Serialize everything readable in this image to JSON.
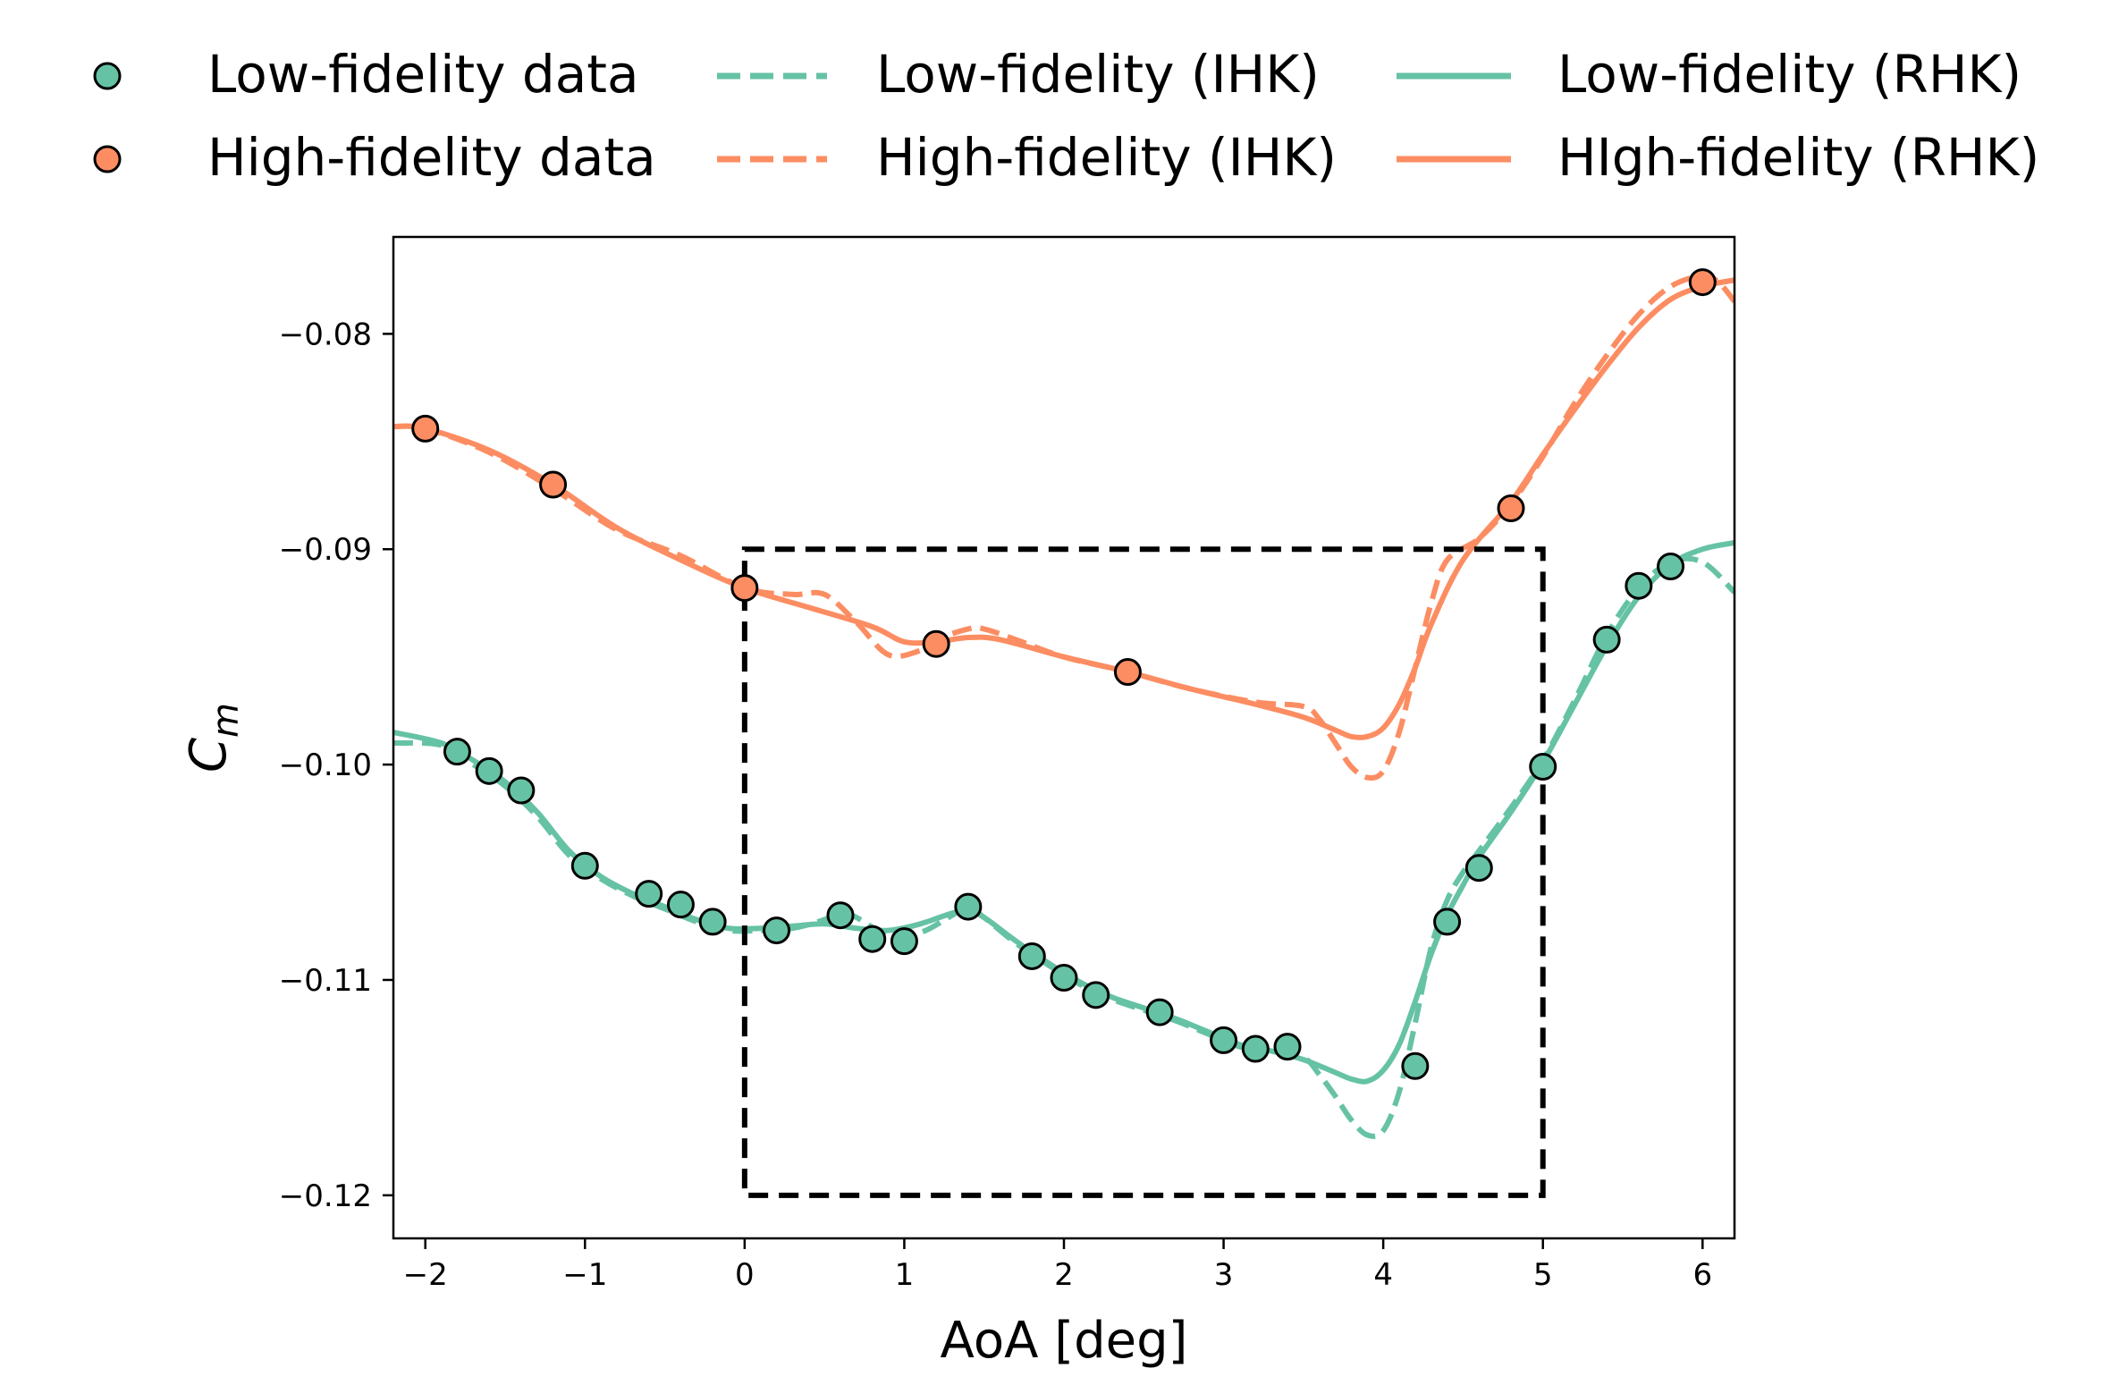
{
  "colors": {
    "low": "#66c2a5",
    "high": "#fc8d62",
    "box": "#000000",
    "marker_edge": "#000000"
  },
  "legend": {
    "low_data": "Low-fidelity data",
    "high_data": "High-fidelity data",
    "low_ihk": "Low-fidelity (IHK)",
    "high_ihk": "High-fidelity (IHK)",
    "low_rhk": "Low-fidelity (RHK)",
    "high_rhk": "HIgh-fidelity (RHK)"
  },
  "chart_data": {
    "type": "line",
    "xlabel": "AoA [deg]",
    "ylabel_base": "C",
    "ylabel_sub": "m",
    "xlim": [
      -2.2,
      6.2
    ],
    "ylim": [
      -0.122,
      -0.0755
    ],
    "xticks": [
      -2,
      -1,
      0,
      1,
      2,
      3,
      4,
      5,
      6
    ],
    "xtick_labels": [
      "−2",
      "−1",
      "0",
      "1",
      "2",
      "3",
      "4",
      "5",
      "6"
    ],
    "yticks": [
      -0.12,
      -0.11,
      -0.1,
      -0.09,
      -0.08
    ],
    "ytick_labels": [
      "−0.12",
      "−0.11",
      "−0.10",
      "−0.09",
      "−0.08"
    ],
    "highlight_box": {
      "x": [
        0,
        5
      ],
      "y": [
        -0.12,
        -0.09
      ]
    },
    "scatter": [
      {
        "key": "low_data",
        "x": [
          -1.8,
          -1.6,
          -1.4,
          -1.0,
          -0.6,
          -0.4,
          -0.2,
          0.2,
          0.6,
          0.8,
          1.0,
          1.4,
          1.8,
          2.0,
          2.2,
          2.6,
          3.0,
          3.2,
          3.4,
          4.2,
          4.4,
          4.6,
          5.0,
          5.4,
          5.6,
          5.8
        ],
        "y": [
          -0.0994,
          -0.1003,
          -0.1012,
          -0.1047,
          -0.106,
          -0.1065,
          -0.1073,
          -0.1077,
          -0.107,
          -0.1081,
          -0.1082,
          -0.1066,
          -0.1089,
          -0.1099,
          -0.1107,
          -0.1115,
          -0.1128,
          -0.1132,
          -0.1131,
          -0.114,
          -0.1073,
          -0.1048,
          -0.1001,
          -0.0942,
          -0.0917,
          -0.0908
        ]
      },
      {
        "key": "high_data",
        "x": [
          -2.0,
          -1.2,
          0.0,
          1.2,
          2.4,
          4.8,
          6.0
        ],
        "y": [
          -0.0844,
          -0.087,
          -0.0918,
          -0.0944,
          -0.0957,
          -0.0881,
          -0.0776
        ]
      }
    ],
    "lines": [
      {
        "key": "low_rhk",
        "dashed": false,
        "x": [
          -2.2,
          -1.9,
          -1.7,
          -1.5,
          -1.3,
          -1.1,
          -0.9,
          -0.7,
          -0.5,
          -0.3,
          -0.1,
          0.1,
          0.3,
          0.5,
          0.7,
          0.9,
          1.1,
          1.3,
          1.4,
          1.5,
          1.7,
          1.9,
          2.1,
          2.3,
          2.5,
          2.7,
          2.9,
          3.1,
          3.3,
          3.5,
          3.7,
          3.8,
          3.9,
          4.0,
          4.1,
          4.2,
          4.3,
          4.4,
          4.5,
          4.6,
          4.8,
          5.0,
          5.2,
          5.4,
          5.6,
          5.8,
          6.0,
          6.2
        ],
        "y": [
          -0.0985,
          -0.099,
          -0.0998,
          -0.1008,
          -0.1022,
          -0.104,
          -0.1052,
          -0.106,
          -0.1066,
          -0.1072,
          -0.1076,
          -0.1076,
          -0.1075,
          -0.1074,
          -0.1076,
          -0.1077,
          -0.1074,
          -0.1069,
          -0.1068,
          -0.1071,
          -0.1082,
          -0.1092,
          -0.1101,
          -0.1108,
          -0.1113,
          -0.1118,
          -0.1124,
          -0.113,
          -0.1133,
          -0.1137,
          -0.1143,
          -0.1146,
          -0.1147,
          -0.1142,
          -0.113,
          -0.111,
          -0.1088,
          -0.107,
          -0.1056,
          -0.1043,
          -0.1022,
          -0.0999,
          -0.0972,
          -0.0945,
          -0.0922,
          -0.0907,
          -0.09,
          -0.0897
        ]
      },
      {
        "key": "low_ihk",
        "dashed": true,
        "x": [
          -2.2,
          -1.9,
          -1.7,
          -1.5,
          -1.3,
          -1.1,
          -0.9,
          -0.7,
          -0.5,
          -0.3,
          -0.1,
          0.1,
          0.3,
          0.5,
          0.6,
          0.7,
          0.9,
          1.1,
          1.3,
          1.4,
          1.5,
          1.7,
          1.9,
          2.1,
          2.3,
          2.5,
          2.7,
          2.9,
          3.1,
          3.3,
          3.5,
          3.6,
          3.7,
          3.8,
          3.9,
          4.0,
          4.1,
          4.2,
          4.3,
          4.4,
          4.5,
          4.6,
          4.8,
          5.0,
          5.2,
          5.4,
          5.6,
          5.8,
          6.0,
          6.2
        ],
        "y": [
          -0.099,
          -0.0991,
          -0.1,
          -0.101,
          -0.1024,
          -0.1042,
          -0.1053,
          -0.1061,
          -0.1067,
          -0.1073,
          -0.1077,
          -0.1077,
          -0.1076,
          -0.1072,
          -0.1068,
          -0.1071,
          -0.1079,
          -0.1078,
          -0.107,
          -0.1066,
          -0.1071,
          -0.1083,
          -0.1093,
          -0.1102,
          -0.1109,
          -0.1114,
          -0.1119,
          -0.1125,
          -0.1131,
          -0.1133,
          -0.1136,
          -0.1144,
          -0.1154,
          -0.1165,
          -0.1172,
          -0.117,
          -0.1152,
          -0.112,
          -0.1085,
          -0.1063,
          -0.105,
          -0.104,
          -0.102,
          -0.0998,
          -0.097,
          -0.094,
          -0.0918,
          -0.0906,
          -0.0906,
          -0.092
        ]
      },
      {
        "key": "high_rhk",
        "dashed": false,
        "x": [
          -2.2,
          -2.0,
          -1.6,
          -1.2,
          -0.8,
          -0.4,
          0.0,
          0.4,
          0.8,
          1.0,
          1.2,
          1.4,
          1.6,
          2.0,
          2.4,
          2.8,
          3.2,
          3.5,
          3.7,
          3.8,
          3.9,
          4.0,
          4.1,
          4.2,
          4.3,
          4.5,
          4.8,
          5.0,
          5.2,
          5.4,
          5.6,
          5.8,
          6.0,
          6.2
        ],
        "y": [
          -0.0843,
          -0.0844,
          -0.0854,
          -0.087,
          -0.089,
          -0.0905,
          -0.0918,
          -0.0927,
          -0.0936,
          -0.0943,
          -0.0943,
          -0.0941,
          -0.0942,
          -0.095,
          -0.0957,
          -0.0965,
          -0.0972,
          -0.0978,
          -0.0984,
          -0.0987,
          -0.0987,
          -0.0983,
          -0.0972,
          -0.0955,
          -0.0935,
          -0.0905,
          -0.0878,
          -0.0856,
          -0.0835,
          -0.0815,
          -0.0797,
          -0.0784,
          -0.0778,
          -0.0775
        ]
      },
      {
        "key": "high_ihk",
        "dashed": true,
        "x": [
          -2.2,
          -2.0,
          -1.6,
          -1.2,
          -0.8,
          -0.4,
          0.0,
          0.3,
          0.5,
          0.7,
          0.9,
          1.1,
          1.2,
          1.4,
          1.5,
          1.7,
          2.0,
          2.4,
          2.8,
          3.2,
          3.5,
          3.6,
          3.7,
          3.8,
          3.9,
          4.0,
          4.1,
          4.2,
          4.3,
          4.4,
          4.6,
          4.8,
          5.0,
          5.2,
          5.4,
          5.6,
          5.8,
          6.0,
          6.1,
          6.2
        ],
        "y": [
          -0.0843,
          -0.0844,
          -0.0855,
          -0.0872,
          -0.0891,
          -0.0903,
          -0.0918,
          -0.0921,
          -0.0921,
          -0.0934,
          -0.0949,
          -0.0947,
          -0.0942,
          -0.0937,
          -0.0937,
          -0.0942,
          -0.095,
          -0.0957,
          -0.0965,
          -0.0971,
          -0.0973,
          -0.0979,
          -0.099,
          -0.1001,
          -0.1006,
          -0.1003,
          -0.0985,
          -0.0955,
          -0.0925,
          -0.0905,
          -0.0895,
          -0.0879,
          -0.0857,
          -0.0832,
          -0.081,
          -0.0791,
          -0.0778,
          -0.0773,
          -0.0776,
          -0.0785
        ]
      }
    ]
  }
}
